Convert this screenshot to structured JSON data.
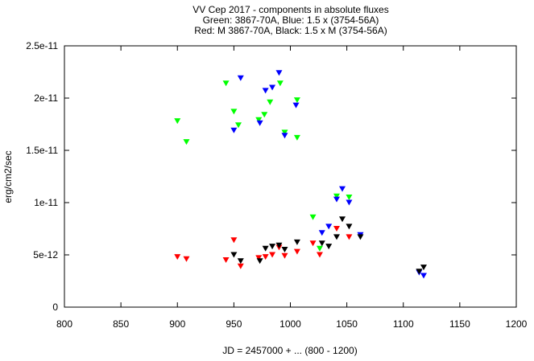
{
  "chart_data": {
    "type": "scatter",
    "title": [
      "VV Cep 2017 - components in absolute fluxes",
      "Green: 3867-70A, Blue: 1.5 x (3754-56A)",
      "Red: M 3867-70A, Black: 1.5 x M (3754-56A)"
    ],
    "xlabel": "JD = 2457000 + ... (800 - 1200)",
    "ylabel": "erg/cm2/sec",
    "xlim": [
      800,
      1200
    ],
    "ylim": [
      0,
      2.5e-11
    ],
    "xticks": [
      800,
      850,
      900,
      950,
      1000,
      1050,
      1100,
      1150,
      1200
    ],
    "xtick_labels": [
      "800",
      "850",
      "900",
      "950",
      "1000",
      "1050",
      "1100",
      "1150",
      "1200"
    ],
    "yticks": [
      0,
      5e-12,
      1e-11,
      1.5e-11,
      2e-11,
      2.5e-11
    ],
    "ytick_labels": [
      "0",
      "5e-12",
      "1e-11",
      "1.5e-11",
      "2e-11",
      "2.5e-11"
    ],
    "marker": "triangle-down",
    "grid": false,
    "series": [
      {
        "color": "#00ff00",
        "x": [
          900,
          908,
          943,
          950,
          954,
          972,
          977,
          982,
          991,
          995,
          1006,
          1006,
          1020,
          1026,
          1041,
          1052
        ],
        "y": [
          1.78e-11,
          1.58e-11,
          2.14e-11,
          1.87e-11,
          1.74e-11,
          1.79e-11,
          1.84e-11,
          1.96e-11,
          2.14e-11,
          1.67e-11,
          1.98e-11,
          1.62e-11,
          8.6e-12,
          5.6e-12,
          1.06e-11,
          1.05e-11
        ]
      },
      {
        "color": "#0000ff",
        "x": [
          950,
          956,
          973,
          978,
          984,
          990,
          995,
          1005,
          1028,
          1034,
          1041,
          1046,
          1052,
          1062,
          1114,
          1118
        ],
        "y": [
          1.69e-11,
          2.19e-11,
          1.76e-11,
          2.07e-11,
          2.1e-11,
          2.24e-11,
          1.64e-11,
          1.93e-11,
          7.1e-12,
          7.7e-12,
          1.03e-11,
          1.13e-11,
          1e-11,
          6.9e-12,
          3.3e-12,
          3e-12
        ]
      },
      {
        "color": "#ff0000",
        "x": [
          900,
          908,
          943,
          950,
          956,
          972,
          978,
          984,
          990,
          995,
          1006,
          1020,
          1026,
          1041,
          1052
        ],
        "y": [
          4.8e-12,
          4.6e-12,
          4.5e-12,
          6.4e-12,
          3.9e-12,
          4.7e-12,
          4.8e-12,
          5e-12,
          5.7e-12,
          4.9e-12,
          5.3e-12,
          6.1e-12,
          5e-12,
          7.5e-12,
          6.7e-12
        ]
      },
      {
        "color": "#000000",
        "x": [
          950,
          956,
          973,
          978,
          984,
          990,
          995,
          1006,
          1028,
          1034,
          1041,
          1046,
          1052,
          1062,
          1114,
          1118
        ],
        "y": [
          5e-12,
          4.4e-12,
          4.4e-12,
          5.6e-12,
          5.8e-12,
          5.9e-12,
          5.5e-12,
          6.2e-12,
          6.1e-12,
          5.8e-12,
          6.7e-12,
          8.4e-12,
          7.7e-12,
          6.7e-12,
          3.4e-12,
          3.8e-12
        ]
      }
    ]
  }
}
